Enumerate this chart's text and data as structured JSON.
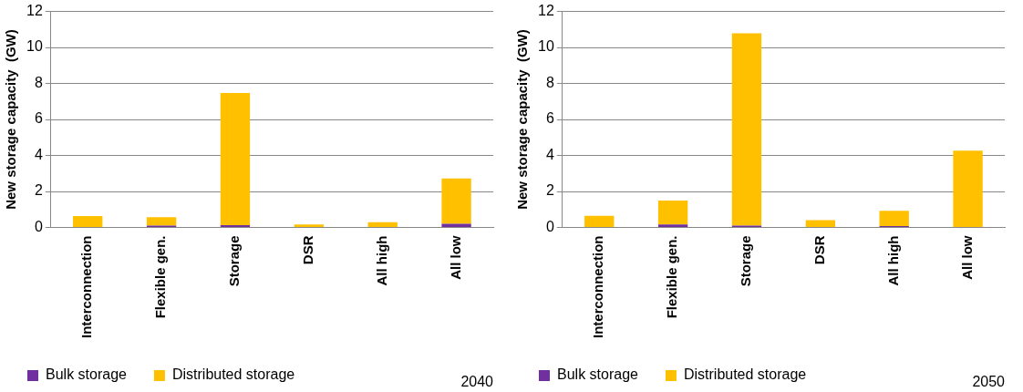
{
  "chart_data": [
    {
      "type": "bar",
      "title": "2040",
      "ylabel": "New storage capacity  (GW)",
      "categories": [
        "Interconnection",
        "Flexible gen.",
        "Storage",
        "DSR",
        "All high",
        "All low"
      ],
      "series": [
        {
          "name": "Bulk storage",
          "color": "#7030a0",
          "values": [
            null,
            0.1,
            0.13,
            null,
            0.03,
            0.2
          ]
        },
        {
          "name": "Distributed storage",
          "color": "#ffc000",
          "values": [
            0.63,
            0.47,
            7.34,
            0.17,
            0.26,
            2.52
          ]
        }
      ],
      "stacked": true,
      "ylim": [
        0,
        12
      ],
      "yticks": [
        0,
        2,
        4,
        6,
        8,
        10,
        12
      ],
      "grid": "y",
      "legend": "bottom"
    },
    {
      "type": "bar",
      "title": "2050",
      "ylabel": "New storage capacity  (GW)",
      "categories": [
        "Interconnection",
        "Flexible gen.",
        "Storage",
        "DSR",
        "All high",
        "All low"
      ],
      "series": [
        {
          "name": "Bulk storage",
          "color": "#7030a0",
          "values": [
            null,
            0.17,
            0.1,
            0.02,
            0.08,
            0.03
          ]
        },
        {
          "name": "Distributed storage",
          "color": "#ffc000",
          "values": [
            0.65,
            1.33,
            10.69,
            0.38,
            0.84,
            4.24
          ]
        }
      ],
      "stacked": true,
      "ylim": [
        0,
        12
      ],
      "yticks": [
        0,
        2,
        4,
        6,
        8,
        10,
        12
      ],
      "grid": "y",
      "legend": "bottom"
    }
  ]
}
